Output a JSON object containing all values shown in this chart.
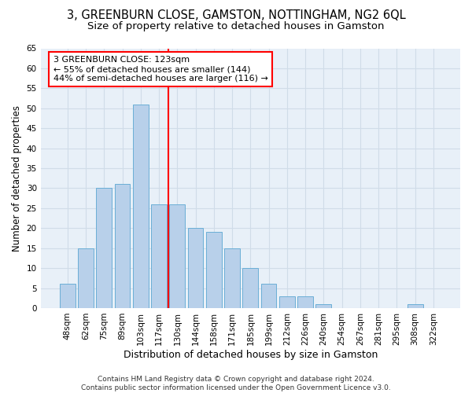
{
  "title": "3, GREENBURN CLOSE, GAMSTON, NOTTINGHAM, NG2 6QL",
  "subtitle": "Size of property relative to detached houses in Gamston",
  "xlabel": "Distribution of detached houses by size in Gamston",
  "ylabel": "Number of detached properties",
  "bar_labels": [
    "48sqm",
    "62sqm",
    "75sqm",
    "89sqm",
    "103sqm",
    "117sqm",
    "130sqm",
    "144sqm",
    "158sqm",
    "171sqm",
    "185sqm",
    "199sqm",
    "212sqm",
    "226sqm",
    "240sqm",
    "254sqm",
    "267sqm",
    "281sqm",
    "295sqm",
    "308sqm",
    "322sqm"
  ],
  "bar_values": [
    6,
    15,
    30,
    31,
    51,
    26,
    26,
    20,
    19,
    15,
    10,
    6,
    3,
    3,
    1,
    0,
    0,
    0,
    0,
    1,
    0
  ],
  "bar_color": "#b8d0ea",
  "bar_edge_color": "#6aaed6",
  "vline_index": 5.5,
  "vline_color": "red",
  "annotation_text": "3 GREENBURN CLOSE: 123sqm\n← 55% of detached houses are smaller (144)\n44% of semi-detached houses are larger (116) →",
  "annotation_box_color": "white",
  "annotation_box_edge_color": "red",
  "ylim": [
    0,
    65
  ],
  "yticks": [
    0,
    5,
    10,
    15,
    20,
    25,
    30,
    35,
    40,
    45,
    50,
    55,
    60,
    65
  ],
  "background_color": "#e8f0f8",
  "grid_color": "#d0dce8",
  "footer_text": "Contains HM Land Registry data © Crown copyright and database right 2024.\nContains public sector information licensed under the Open Government Licence v3.0.",
  "title_fontsize": 10.5,
  "subtitle_fontsize": 9.5,
  "xlabel_fontsize": 9,
  "ylabel_fontsize": 8.5,
  "tick_fontsize": 7.5,
  "annotation_fontsize": 8,
  "footer_fontsize": 6.5
}
